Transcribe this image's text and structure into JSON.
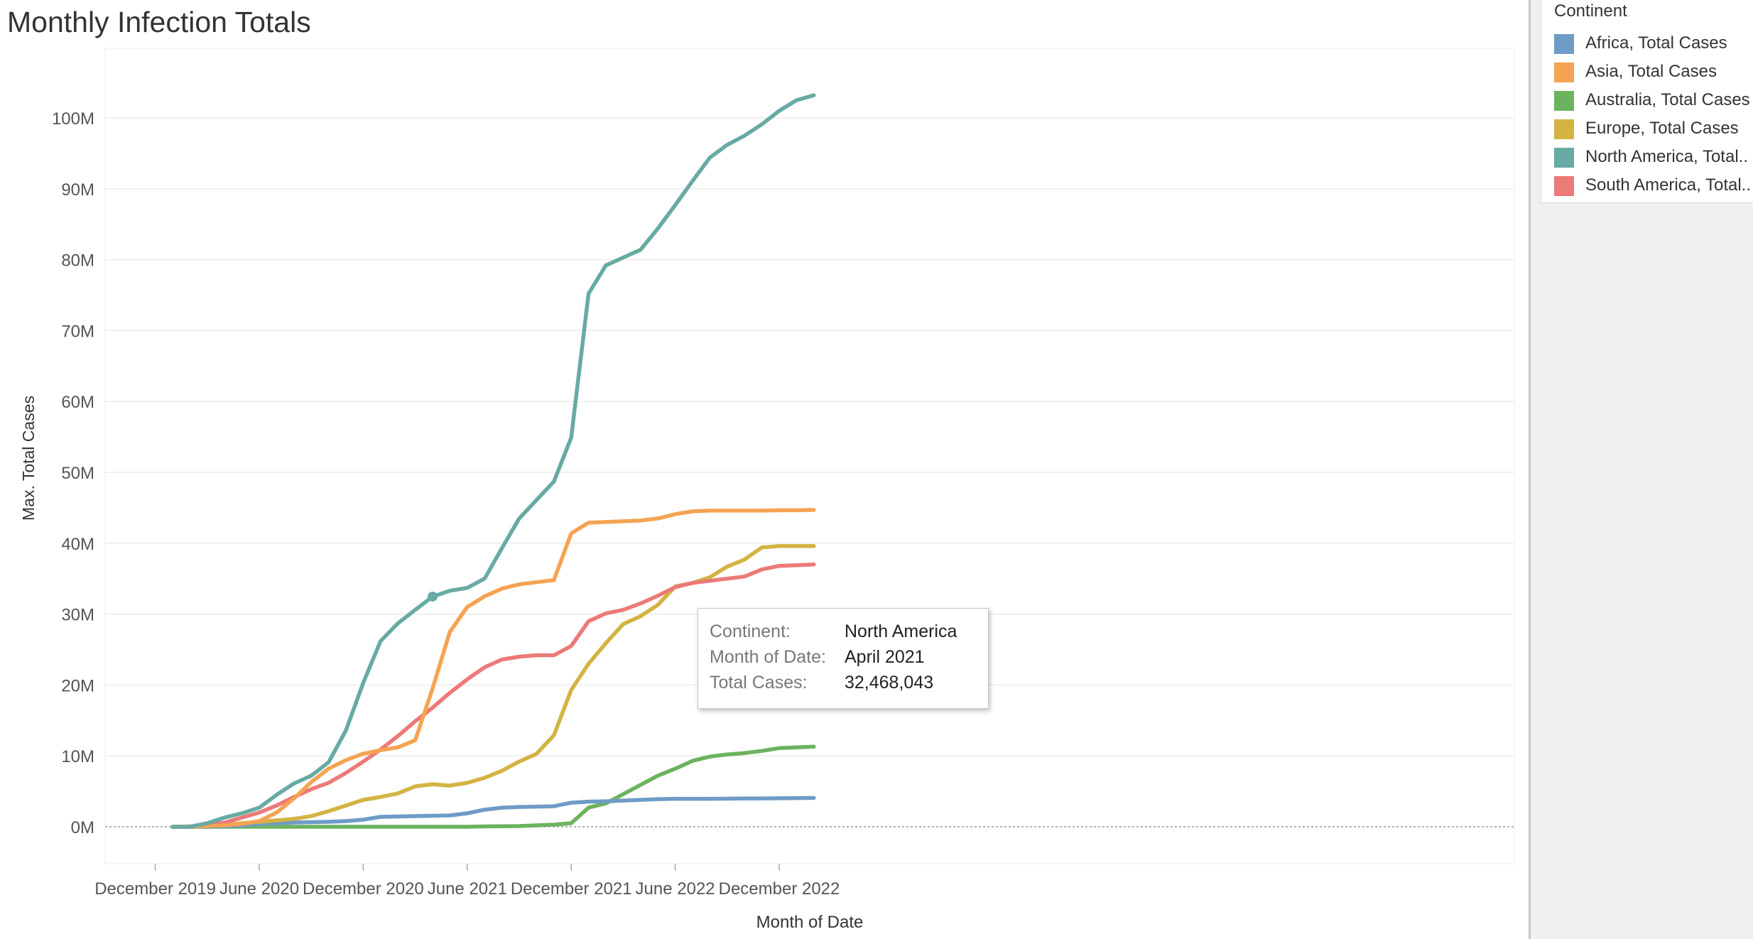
{
  "title": "Monthly Infection Totals",
  "colors": {
    "Africa": "#6e9cc6",
    "Asia": "#f5a352",
    "Australia": "#6cb35f",
    "Europe": "#d3b443",
    "North America": "#68aaa4",
    "South America": "#ec7a78"
  },
  "legend": {
    "title": "Continent",
    "items": [
      {
        "label": "Africa, Total Cases",
        "color": "#6e9cc6"
      },
      {
        "label": "Asia, Total Cases",
        "color": "#f5a352"
      },
      {
        "label": "Australia, Total Cases",
        "color": "#6cb35f"
      },
      {
        "label": "Europe, Total Cases",
        "color": "#d3b443"
      },
      {
        "label": "North America, Total..",
        "color": "#68aaa4"
      },
      {
        "label": "South America, Total..",
        "color": "#ec7a78"
      }
    ]
  },
  "tooltip": {
    "rows": [
      {
        "key": "Continent:",
        "value": "North America"
      },
      {
        "key": "Month of Date:",
        "value": "April 2021"
      },
      {
        "key": "Total Cases:",
        "value": "32,468,043"
      }
    ]
  },
  "chart_data": {
    "type": "line",
    "title": "Monthly Infection Totals",
    "xlabel": "Month of Date",
    "ylabel": "Max. Total Cases",
    "ylim": [
      -5,
      105
    ],
    "yticks": [
      0,
      10,
      20,
      30,
      40,
      50,
      60,
      70,
      80,
      90,
      100
    ],
    "ytick_labels": [
      "0M",
      "10M",
      "20M",
      "30M",
      "40M",
      "50M",
      "60M",
      "70M",
      "80M",
      "90M",
      "100M"
    ],
    "xtick_labels": [
      "December 2019",
      "June 2020",
      "December 2020",
      "June 2021",
      "December 2021",
      "June 2022",
      "December 2022"
    ],
    "x": [
      "2020-01",
      "2020-02",
      "2020-03",
      "2020-04",
      "2020-05",
      "2020-06",
      "2020-07",
      "2020-08",
      "2020-09",
      "2020-10",
      "2020-11",
      "2020-12",
      "2021-01",
      "2021-02",
      "2021-03",
      "2021-04",
      "2021-05",
      "2021-06",
      "2021-07",
      "2021-08",
      "2021-09",
      "2021-10",
      "2021-11",
      "2021-12",
      "2022-01",
      "2022-02",
      "2022-03",
      "2022-04",
      "2022-05",
      "2022-06",
      "2022-07",
      "2022-08",
      "2022-09",
      "2022-10",
      "2022-11",
      "2022-12",
      "2023-01",
      "2023-02"
    ],
    "unit": "M",
    "legend_position": "right",
    "grid": true,
    "series": [
      {
        "name": "Africa, Total Cases",
        "values": [
          0,
          0,
          0,
          0.05,
          0.2,
          0.4,
          0.5,
          0.6,
          0.65,
          0.7,
          0.8,
          1.0,
          1.4,
          1.45,
          1.5,
          1.55,
          1.6,
          1.9,
          2.4,
          2.7,
          2.8,
          2.85,
          2.9,
          3.4,
          3.55,
          3.6,
          3.7,
          3.8,
          3.9,
          3.95,
          3.95,
          3.95,
          3.97,
          4.0,
          4.0,
          4.02,
          4.05,
          4.07
        ]
      },
      {
        "name": "Asia, Total Cases",
        "values": [
          0,
          0.05,
          0.1,
          0.2,
          0.4,
          0.8,
          2.0,
          4.0,
          6.3,
          8.2,
          9.4,
          10.3,
          10.8,
          11.2,
          12.2,
          19.5,
          27.5,
          31.0,
          32.5,
          33.6,
          34.2,
          34.5,
          34.8,
          41.4,
          42.9,
          43.0,
          43.1,
          43.2,
          43.5,
          44.1,
          44.5,
          44.6,
          44.6,
          44.6,
          44.6,
          44.65,
          44.65,
          44.7
        ]
      },
      {
        "name": "Australia, Total Cases",
        "values": [
          0,
          0,
          0,
          0,
          0,
          0,
          0,
          0,
          0,
          0,
          0,
          0,
          0,
          0,
          0,
          0,
          0,
          0,
          0.05,
          0.07,
          0.1,
          0.2,
          0.3,
          0.5,
          2.7,
          3.3,
          4.6,
          5.9,
          7.2,
          8.2,
          9.3,
          9.9,
          10.2,
          10.4,
          10.7,
          11.1,
          11.2,
          11.3
        ]
      },
      {
        "name": "Europe, Total Cases",
        "values": [
          0,
          0,
          0.1,
          0.3,
          0.5,
          0.7,
          0.9,
          1.1,
          1.5,
          2.2,
          3.0,
          3.8,
          4.2,
          4.7,
          5.7,
          6.0,
          5.8,
          6.2,
          6.9,
          7.9,
          9.2,
          10.3,
          12.9,
          19.3,
          23.0,
          25.9,
          28.6,
          29.7,
          31.3,
          33.9,
          34.4,
          35.2,
          36.7,
          37.7,
          39.4,
          39.6,
          39.6,
          39.6
        ]
      },
      {
        "name": "North America, Total..",
        "values": [
          0,
          0,
          0.5,
          1.3,
          1.9,
          2.7,
          4.5,
          6.1,
          7.2,
          9.1,
          13.6,
          20.3,
          26.2,
          28.7,
          30.6,
          32.468043,
          33.3,
          33.7,
          35.0,
          39.3,
          43.5,
          46.1,
          48.7,
          54.9,
          75.2,
          79.2,
          80.3,
          81.4,
          84.4,
          87.7,
          91.1,
          94.4,
          96.2,
          97.5,
          99.1,
          101.0,
          102.5,
          103.2
        ]
      },
      {
        "name": "South America, Total..",
        "values": [
          0,
          0,
          0.2,
          0.6,
          1.3,
          2.0,
          3.0,
          4.2,
          5.3,
          6.2,
          7.6,
          9.2,
          10.9,
          12.8,
          14.9,
          16.8,
          18.9,
          20.8,
          22.5,
          23.6,
          24.0,
          24.2,
          24.2,
          25.5,
          29.0,
          30.1,
          30.6,
          31.5,
          32.6,
          33.8,
          34.4,
          34.7,
          35.0,
          35.3,
          36.3,
          36.8,
          36.9,
          37.0
        ]
      }
    ]
  }
}
